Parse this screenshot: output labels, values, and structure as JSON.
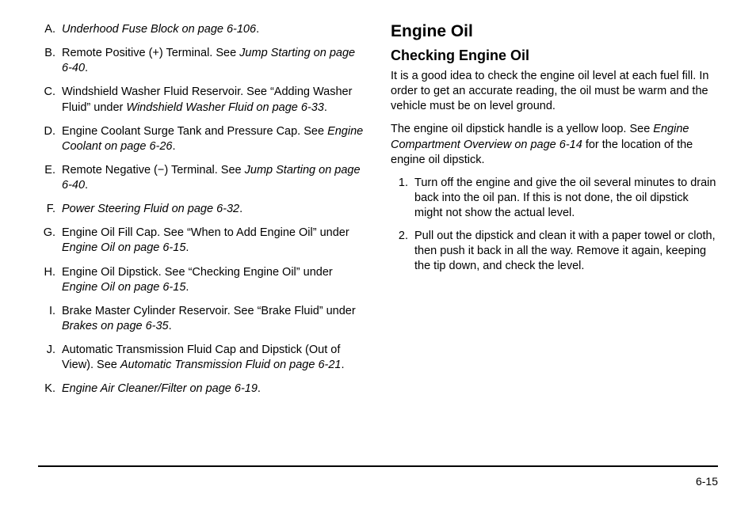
{
  "left": {
    "items": [
      {
        "marker": "A.",
        "prefix": "",
        "ref": "Underhood Fuse Block on page 6-106",
        "suffix": "."
      },
      {
        "marker": "B.",
        "prefix": "Remote Positive (+) Terminal. See ",
        "ref": "Jump Starting on page 6-40",
        "suffix": "."
      },
      {
        "marker": "C.",
        "prefix": "Windshield Washer Fluid Reservoir. See “Adding Washer Fluid” under ",
        "ref": "Windshield Washer Fluid on page 6-33",
        "suffix": "."
      },
      {
        "marker": "D.",
        "prefix": "Engine Coolant Surge Tank and Pressure Cap. See ",
        "ref": "Engine Coolant on page 6-26",
        "suffix": "."
      },
      {
        "marker": "E.",
        "prefix": "Remote Negative (−) Terminal. See ",
        "ref": "Jump Starting on page 6-40",
        "suffix": "."
      },
      {
        "marker": "F.",
        "prefix": "",
        "ref": "Power Steering Fluid on page 6-32",
        "suffix": "."
      },
      {
        "marker": "G.",
        "prefix": "Engine Oil Fill Cap. See “When to Add Engine Oil” under ",
        "ref": "Engine Oil on page 6-15",
        "suffix": "."
      },
      {
        "marker": "H.",
        "prefix": "Engine Oil Dipstick. See “Checking Engine Oil” under ",
        "ref": "Engine Oil on page 6-15",
        "suffix": "."
      },
      {
        "marker": "I.",
        "prefix": "Brake Master Cylinder Reservoir. See “Brake Fluid” under ",
        "ref": "Brakes on page 6-35",
        "suffix": "."
      },
      {
        "marker": "J.",
        "prefix": "Automatic Transmission Fluid Cap and Dipstick (Out of View). See ",
        "ref": "Automatic Transmission Fluid on page 6-21",
        "suffix": "."
      },
      {
        "marker": "K.",
        "prefix": "",
        "ref": "Engine Air Cleaner/Filter on page 6-19",
        "suffix": "."
      }
    ]
  },
  "right": {
    "h2": "Engine Oil",
    "h3": "Checking Engine Oil",
    "p1": "It is a good idea to check the engine oil level at each fuel fill. In order to get an accurate reading, the oil must be warm and the vehicle must be on level ground.",
    "p2_prefix": "The engine oil dipstick handle is a yellow loop. See ",
    "p2_ref": "Engine Compartment Overview on page 6-14",
    "p2_suffix": " for the location of the engine oil dipstick.",
    "steps": [
      {
        "marker": "1.",
        "text": "Turn off the engine and give the oil several minutes to drain back into the oil pan. If this is not done, the oil dipstick might not show the actual level."
      },
      {
        "marker": "2.",
        "text": "Pull out the dipstick and clean it with a paper towel or cloth, then push it back in all the way. Remove it again, keeping the tip down, and check the level."
      }
    ]
  },
  "page_number": "6-15"
}
